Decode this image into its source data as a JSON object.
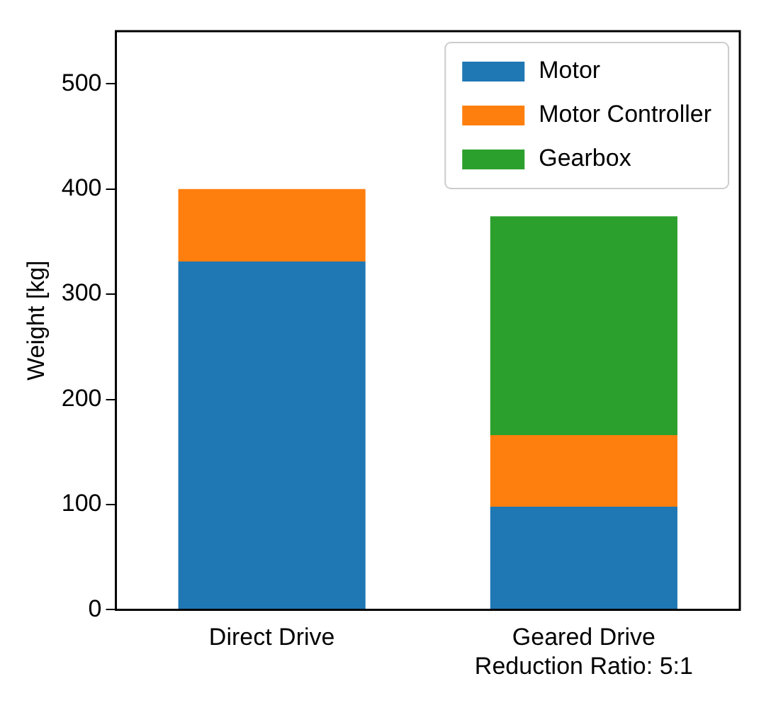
{
  "chart_data": {
    "type": "bar",
    "ylabel": "Weight [kg]",
    "categories": [
      "Direct Drive",
      "Geared Drive\nReduction Ratio: 5:1"
    ],
    "series": [
      {
        "name": "Motor",
        "color": "#1f77b4",
        "values": [
          331,
          98
        ]
      },
      {
        "name": "Motor Controller",
        "color": "#ff7f0e",
        "values": [
          69,
          68
        ]
      },
      {
        "name": "Gearbox",
        "color": "#2ca02c",
        "values": [
          0,
          208
        ]
      }
    ],
    "stacked": true,
    "ylim": [
      0,
      550
    ],
    "yticks": [
      0,
      100,
      200,
      300,
      400,
      500
    ],
    "grid": false,
    "legend": "top right"
  }
}
